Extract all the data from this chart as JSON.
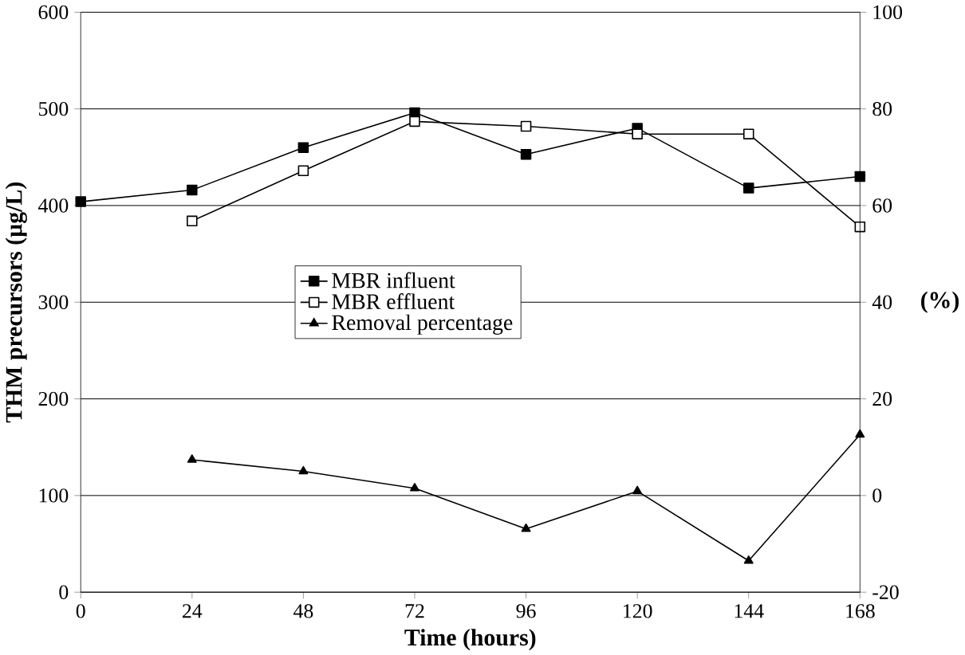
{
  "chart_data": {
    "type": "line",
    "xlabel": "Time (hours)",
    "ylabel": "THM precursors (µg/L)",
    "y2label": "(%)",
    "x": [
      0,
      24,
      48,
      72,
      96,
      120,
      144,
      168
    ],
    "xlim": [
      0,
      168
    ],
    "xticks": [
      0,
      24,
      48,
      72,
      96,
      120,
      144,
      168
    ],
    "ylim": [
      0,
      600
    ],
    "yticks": [
      0,
      100,
      200,
      300,
      400,
      500,
      600
    ],
    "y2lim": [
      -20,
      100
    ],
    "y2ticks": [
      -20,
      0,
      20,
      40,
      60,
      80,
      100
    ],
    "grid": "y",
    "legend": "center",
    "line_style": "solid",
    "series": [
      {
        "name": "MBR influent",
        "color": "#000000",
        "marker": "square",
        "values": [
          404,
          416,
          460,
          496,
          453,
          480,
          418,
          430
        ]
      },
      {
        "name": "MBR effluent",
        "color": "#000000",
        "marker": "square",
        "values": [
          null,
          384,
          436,
          487,
          482,
          474,
          474,
          378
        ]
      },
      {
        "name": "Removal percentage",
        "color": "#000000",
        "marker": "triangle",
        "axis": "y2",
        "values": [
          null,
          7.4,
          5.0,
          1.5,
          -6.9,
          0.9,
          -13.5,
          12.6
        ]
      }
    ]
  }
}
